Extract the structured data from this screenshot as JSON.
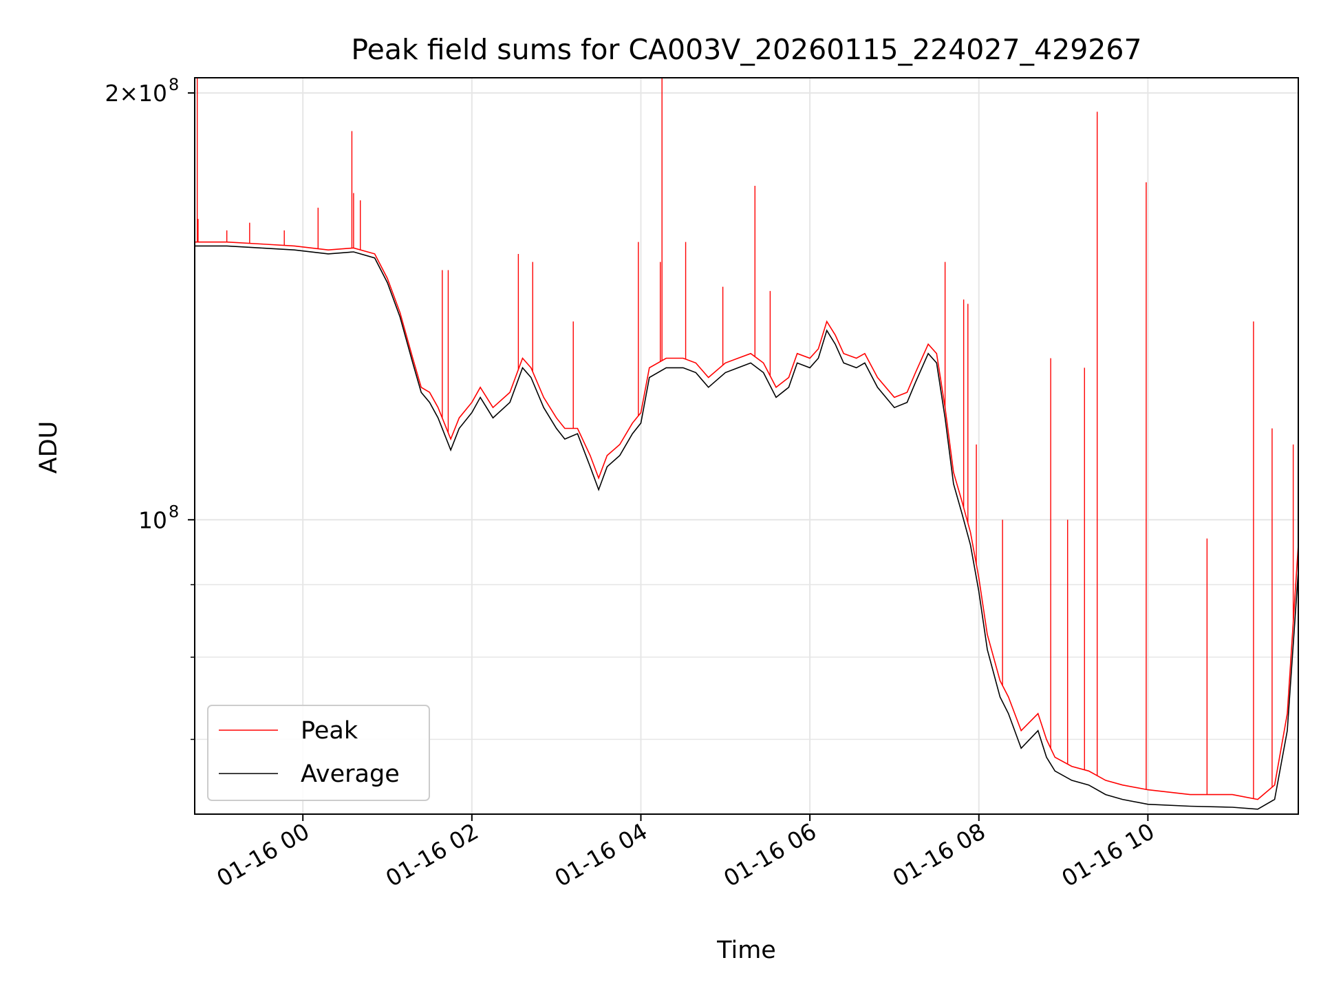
{
  "chart_data": {
    "type": "line",
    "title": "Peak field sums for CA003V_20260115_224027_429267",
    "xlabel": "Time",
    "ylabel": "ADU",
    "y_scale": "log",
    "ylim": [
      62000000,
      205000000
    ],
    "xlim_hours": [
      -1.28,
      11.78
    ],
    "x_ticks": [
      {
        "label": "01-16 00",
        "hour": 0
      },
      {
        "label": "01-16 02",
        "hour": 2
      },
      {
        "label": "01-16 04",
        "hour": 4
      },
      {
        "label": "01-16 06",
        "hour": 6
      },
      {
        "label": "01-16 08",
        "hour": 8
      },
      {
        "label": "01-16 10",
        "hour": 10
      }
    ],
    "y_major_ticks": [
      {
        "base": "10",
        "exp": "8",
        "value": 100000000
      },
      {
        "base": "2×10",
        "exp": "8",
        "value": 200000000
      }
    ],
    "y_minor_ticks": [
      70000000,
      80000000,
      90000000,
      300000000
    ],
    "grid": true,
    "legend_position": "lower-left",
    "colors": {
      "peak": "#ff0000",
      "average": "#000000",
      "grid": "#e6e6e6"
    },
    "series": [
      {
        "name": "Peak",
        "color": "#ff0000",
        "x_hours": [
          -1.28,
          -0.9,
          -0.5,
          -0.1,
          0.3,
          0.6,
          0.85,
          1.0,
          1.15,
          1.3,
          1.4,
          1.5,
          1.6,
          1.75,
          1.85,
          2.0,
          2.1,
          2.25,
          2.45,
          2.6,
          2.7,
          2.85,
          3.0,
          3.1,
          3.25,
          3.4,
          3.5,
          3.6,
          3.75,
          3.9,
          4.0,
          4.1,
          4.3,
          4.5,
          4.65,
          4.8,
          5.0,
          5.15,
          5.3,
          5.45,
          5.6,
          5.75,
          5.85,
          6.0,
          6.1,
          6.2,
          6.3,
          6.4,
          6.55,
          6.65,
          6.8,
          7.0,
          7.15,
          7.25,
          7.4,
          7.5,
          7.6,
          7.7,
          7.8,
          7.9,
          8.0,
          8.1,
          8.25,
          8.35,
          8.5,
          8.7,
          8.8,
          8.9,
          9.1,
          9.3,
          9.5,
          9.7,
          10.0,
          10.5,
          11.0,
          11.3,
          11.5,
          11.65,
          11.78
        ],
        "values": [
          157000000,
          157000000,
          156500000,
          156000000,
          155000000,
          155500000,
          154000000,
          148000000,
          140000000,
          130000000,
          124000000,
          123000000,
          120000000,
          114000000,
          118000000,
          121000000,
          124000000,
          120000000,
          123000000,
          130000000,
          128000000,
          122000000,
          118000000,
          116000000,
          116000000,
          111000000,
          107000000,
          111000000,
          113000000,
          117000000,
          119000000,
          128000000,
          130000000,
          130000000,
          129000000,
          126000000,
          129000000,
          130000000,
          131000000,
          129000000,
          124000000,
          126000000,
          131000000,
          130000000,
          132000000,
          138000000,
          135000000,
          131000000,
          130000000,
          131000000,
          126000000,
          122000000,
          123000000,
          127000000,
          133000000,
          131000000,
          120000000,
          108000000,
          103000000,
          98000000,
          91000000,
          83000000,
          77000000,
          75000000,
          71000000,
          73000000,
          70000000,
          68000000,
          67000000,
          66500000,
          65500000,
          65000000,
          64500000,
          64000000,
          64000000,
          63500000,
          65000000,
          73000000,
          96000000
        ]
      },
      {
        "name": "Average",
        "color": "#000000",
        "x_hours": [
          -1.28,
          -0.9,
          -0.5,
          -0.1,
          0.3,
          0.6,
          0.85,
          1.0,
          1.15,
          1.3,
          1.4,
          1.5,
          1.6,
          1.75,
          1.85,
          2.0,
          2.1,
          2.25,
          2.45,
          2.6,
          2.7,
          2.85,
          3.0,
          3.1,
          3.25,
          3.4,
          3.5,
          3.6,
          3.75,
          3.9,
          4.0,
          4.1,
          4.3,
          4.5,
          4.65,
          4.8,
          5.0,
          5.15,
          5.3,
          5.45,
          5.6,
          5.75,
          5.85,
          6.0,
          6.1,
          6.2,
          6.3,
          6.4,
          6.55,
          6.65,
          6.8,
          7.0,
          7.15,
          7.25,
          7.4,
          7.5,
          7.6,
          7.7,
          7.8,
          7.9,
          8.0,
          8.1,
          8.25,
          8.35,
          8.5,
          8.7,
          8.8,
          8.9,
          9.1,
          9.3,
          9.5,
          9.7,
          10.0,
          10.5,
          11.0,
          11.3,
          11.5,
          11.65,
          11.78
        ],
        "values": [
          156000000,
          156000000,
          155500000,
          155000000,
          154000000,
          154500000,
          153000000,
          147000000,
          139000000,
          129000000,
          123000000,
          121000000,
          118000000,
          112000000,
          116000000,
          119000000,
          122000000,
          118000000,
          121000000,
          128000000,
          126000000,
          120000000,
          116000000,
          114000000,
          115000000,
          109000000,
          105000000,
          109000000,
          111000000,
          115000000,
          117000000,
          126000000,
          128000000,
          128000000,
          127000000,
          124000000,
          127000000,
          128000000,
          129000000,
          127000000,
          122000000,
          124000000,
          129000000,
          128000000,
          130000000,
          136000000,
          133000000,
          129000000,
          128000000,
          129000000,
          124000000,
          120000000,
          121000000,
          125000000,
          131000000,
          129000000,
          118000000,
          106000000,
          101000000,
          96000000,
          89000000,
          81000000,
          75000000,
          73000000,
          69000000,
          71000000,
          68000000,
          66500000,
          65500000,
          65000000,
          64000000,
          63500000,
          63000000,
          62800000,
          62700000,
          62500000,
          63500000,
          71000000,
          92000000
        ]
      }
    ],
    "peak_spikes": [
      {
        "hour": -1.25,
        "value": 205000000
      },
      {
        "hour": -1.24,
        "value": 163000000
      },
      {
        "hour": -0.9,
        "value": 160000000
      },
      {
        "hour": -0.63,
        "value": 162000000
      },
      {
        "hour": -0.22,
        "value": 160000000
      },
      {
        "hour": 0.18,
        "value": 166000000
      },
      {
        "hour": 0.58,
        "value": 188000000
      },
      {
        "hour": 0.6,
        "value": 170000000
      },
      {
        "hour": 0.68,
        "value": 168000000
      },
      {
        "hour": 1.65,
        "value": 150000000
      },
      {
        "hour": 1.72,
        "value": 150000000
      },
      {
        "hour": 2.55,
        "value": 154000000
      },
      {
        "hour": 2.72,
        "value": 152000000
      },
      {
        "hour": 3.2,
        "value": 138000000
      },
      {
        "hour": 3.97,
        "value": 157000000
      },
      {
        "hour": 4.23,
        "value": 152000000
      },
      {
        "hour": 4.25,
        "value": 205000000
      },
      {
        "hour": 4.53,
        "value": 157000000
      },
      {
        "hour": 4.97,
        "value": 146000000
      },
      {
        "hour": 5.35,
        "value": 172000000
      },
      {
        "hour": 5.53,
        "value": 145000000
      },
      {
        "hour": 7.6,
        "value": 152000000
      },
      {
        "hour": 7.82,
        "value": 143000000
      },
      {
        "hour": 7.87,
        "value": 142000000
      },
      {
        "hour": 7.97,
        "value": 113000000
      },
      {
        "hour": 8.28,
        "value": 100000000
      },
      {
        "hour": 8.85,
        "value": 130000000
      },
      {
        "hour": 9.05,
        "value": 100000000
      },
      {
        "hour": 9.25,
        "value": 128000000
      },
      {
        "hour": 9.4,
        "value": 194000000
      },
      {
        "hour": 9.98,
        "value": 173000000
      },
      {
        "hour": 10.7,
        "value": 97000000
      },
      {
        "hour": 11.25,
        "value": 138000000
      },
      {
        "hour": 11.47,
        "value": 116000000
      },
      {
        "hour": 11.72,
        "value": 113000000
      }
    ],
    "legend": [
      {
        "label": "Peak",
        "color": "#ff0000"
      },
      {
        "label": "Average",
        "color": "#000000"
      }
    ]
  }
}
